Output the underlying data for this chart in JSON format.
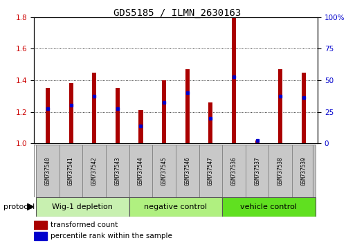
{
  "title": "GDS5185 / ILMN_2630163",
  "samples": [
    "GSM737540",
    "GSM737541",
    "GSM737542",
    "GSM737543",
    "GSM737544",
    "GSM737545",
    "GSM737546",
    "GSM737547",
    "GSM737536",
    "GSM737537",
    "GSM737538",
    "GSM737539"
  ],
  "red_values": [
    1.35,
    1.38,
    1.45,
    1.35,
    1.21,
    1.4,
    1.47,
    1.26,
    1.8,
    1.02,
    1.47,
    1.45
  ],
  "blue_values": [
    1.22,
    1.24,
    1.3,
    1.22,
    1.11,
    1.26,
    1.32,
    1.16,
    1.42,
    1.02,
    1.3,
    1.29
  ],
  "ylim": [
    1.0,
    1.8
  ],
  "yticks_left": [
    1.0,
    1.2,
    1.4,
    1.6,
    1.8
  ],
  "yticks_right": [
    0,
    25,
    50,
    75,
    100
  ],
  "yticks_right_labels": [
    "0",
    "25",
    "50",
    "75",
    "100%"
  ],
  "groups": [
    {
      "label": "Wig-1 depletion",
      "start": 0,
      "end": 4
    },
    {
      "label": "negative control",
      "start": 4,
      "end": 8
    },
    {
      "label": "vehicle control",
      "start": 8,
      "end": 12
    }
  ],
  "group_colors": [
    "#c8f0b0",
    "#b0f080",
    "#60e020"
  ],
  "bar_color": "#aa0000",
  "blue_color": "#0000cc",
  "tick_label_color_left": "#cc0000",
  "tick_label_color_right": "#0000cc",
  "bar_width": 0.18,
  "sample_box_color": "#c8c8c8",
  "legend_red_label": "transformed count",
  "legend_blue_label": "percentile rank within the sample",
  "protocol_label": "protocol"
}
